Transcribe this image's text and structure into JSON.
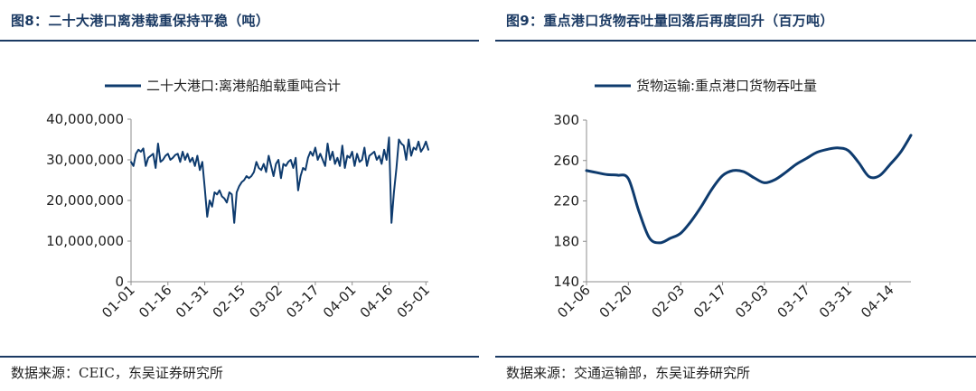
{
  "left": {
    "title": "图8：二十大港口离港载重保持平稳（吨）",
    "source": "数据来源：CEIC，东吴证券研究所",
    "chart_data": {
      "type": "line",
      "title": "",
      "xlabel": "",
      "ylabel": "",
      "ylim": [
        0,
        40000000
      ],
      "y_ticks": [
        "0",
        "10,000,000",
        "20,000,000",
        "30,000,000",
        "40,000,000"
      ],
      "x_ticks": [
        "01-01",
        "01-16",
        "01-31",
        "02-15",
        "03-02",
        "03-17",
        "04-01",
        "04-16",
        "05-01"
      ],
      "grid": false,
      "legend": "top",
      "series": [
        {
          "name": "二十大港口:离港船舶载重吨合计",
          "color": "#0e3b6e",
          "x": [
            "01-01",
            "01-02",
            "01-03",
            "01-04",
            "01-05",
            "01-06",
            "01-07",
            "01-08",
            "01-09",
            "01-10",
            "01-11",
            "01-12",
            "01-13",
            "01-14",
            "01-15",
            "01-16",
            "01-17",
            "01-18",
            "01-19",
            "01-20",
            "01-21",
            "01-22",
            "01-23",
            "01-24",
            "01-25",
            "01-26",
            "01-27",
            "01-28",
            "01-29",
            "01-30",
            "01-31",
            "02-01",
            "02-02",
            "02-03",
            "02-04",
            "02-05",
            "02-06",
            "02-07",
            "02-08",
            "02-09",
            "02-10",
            "02-11",
            "02-12",
            "02-13",
            "02-14",
            "02-15",
            "02-16",
            "02-17",
            "02-18",
            "02-19",
            "02-20",
            "02-21",
            "02-22",
            "02-23",
            "02-24",
            "02-25",
            "02-26",
            "02-27",
            "02-28",
            "03-01",
            "03-02",
            "03-03",
            "03-04",
            "03-05",
            "03-06",
            "03-07",
            "03-08",
            "03-09",
            "03-10",
            "03-11",
            "03-12",
            "03-13",
            "03-14",
            "03-15",
            "03-16",
            "03-17",
            "03-18",
            "03-19",
            "03-20",
            "03-21",
            "03-22",
            "03-23",
            "03-24",
            "03-25",
            "03-26",
            "03-27",
            "03-28",
            "03-29",
            "03-30",
            "03-31",
            "04-01",
            "04-02",
            "04-03",
            "04-04",
            "04-05",
            "04-06",
            "04-07",
            "04-08",
            "04-09",
            "04-10",
            "04-11",
            "04-12",
            "04-13",
            "04-14",
            "04-15",
            "04-16",
            "04-17",
            "04-18",
            "04-19",
            "04-20",
            "04-21",
            "04-22",
            "04-23",
            "04-24",
            "04-25",
            "04-26",
            "04-27",
            "04-28",
            "04-29",
            "04-30",
            "05-01",
            "05-02"
          ],
          "values": [
            29500000,
            28500000,
            31500000,
            32500000,
            32000000,
            32800000,
            28500000,
            30500000,
            31000000,
            31500000,
            28000000,
            34000000,
            29500000,
            30000000,
            31000000,
            31500000,
            30000000,
            30500000,
            31200000,
            31500000,
            29500000,
            32000000,
            30000000,
            31500000,
            29500000,
            30500000,
            28500000,
            31000000,
            27500000,
            29500000,
            23000000,
            16000000,
            20000000,
            18500000,
            22000000,
            21500000,
            22500000,
            21000000,
            20500000,
            19500000,
            22000000,
            21500000,
            14500000,
            22000000,
            23500000,
            24500000,
            25000000,
            26000000,
            25500000,
            26000000,
            27000000,
            29500000,
            28000000,
            27500000,
            29000000,
            27000000,
            31000000,
            28500000,
            26000000,
            29000000,
            30000000,
            25500000,
            29000000,
            28500000,
            29500000,
            30000000,
            28000000,
            30500000,
            22500000,
            26000000,
            28000000,
            27500000,
            30500000,
            32000000,
            31000000,
            33000000,
            30000000,
            31500000,
            30000000,
            28500000,
            34000000,
            30000000,
            32000000,
            29000000,
            30500000,
            28500000,
            33500000,
            28000000,
            31000000,
            30500000,
            32000000,
            28500000,
            31500000,
            29500000,
            30000000,
            33000000,
            28500000,
            31000000,
            31500000,
            32000000,
            30000000,
            31000000,
            29000000,
            32500000,
            30000000,
            35500000,
            14500000,
            22000000,
            28000000,
            35000000,
            34000000,
            33500000,
            30000000,
            35000000,
            31000000,
            33000000,
            32500000,
            34500000,
            32000000,
            33000000,
            34500000,
            32500000
          ]
        }
      ]
    }
  },
  "right": {
    "title": "图9：重点港口货物吞吐量回落后再度回升（百万吨）",
    "source": "数据来源：交通运输部，东吴证券研究所",
    "chart_data": {
      "type": "line",
      "title": "",
      "xlabel": "",
      "ylabel": "",
      "ylim": [
        140,
        300
      ],
      "y_ticks": [
        "140",
        "180",
        "220",
        "260",
        "300"
      ],
      "x_ticks": [
        "01-06",
        "01-20",
        "02-03",
        "02-17",
        "03-03",
        "03-17",
        "03-31",
        "04-14"
      ],
      "grid": false,
      "legend": "top",
      "series": [
        {
          "name": "货物运输:重点港口货物吞吐量",
          "color": "#0e3b6e",
          "x": [
            "01-06",
            "01-09",
            "01-13",
            "01-16",
            "01-20",
            "01-23",
            "01-26",
            "01-29",
            "02-01",
            "02-03",
            "02-06",
            "02-09",
            "02-13",
            "02-17",
            "02-20",
            "02-24",
            "02-27",
            "03-03",
            "03-06",
            "03-10",
            "03-13",
            "03-17",
            "03-20",
            "03-24",
            "03-27",
            "03-31",
            "04-03",
            "04-07",
            "04-10",
            "04-14",
            "04-17",
            "04-20"
          ],
          "values": [
            250.0,
            248.0,
            246.0,
            245.5,
            242.0,
            210.0,
            183.5,
            178.5,
            183.0,
            188.0,
            200.0,
            215.0,
            232.0,
            245.0,
            250.0,
            249.0,
            243.0,
            238.0,
            241.0,
            248.0,
            256.0,
            262.0,
            268.0,
            271.0,
            272.5,
            270.0,
            258.0,
            244.0,
            245.0,
            256.0,
            268.0,
            285.0
          ]
        }
      ]
    }
  }
}
